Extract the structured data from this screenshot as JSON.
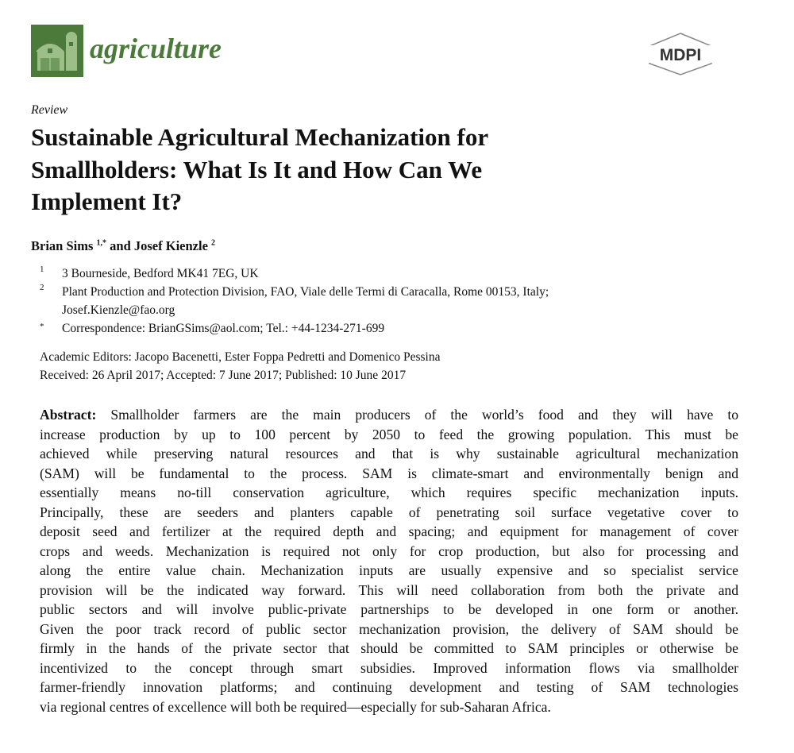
{
  "header": {
    "journal_name": "agriculture",
    "publisher_logo": "MDPI",
    "brand_color": "#4b7a3a"
  },
  "article": {
    "type": "Review",
    "title_lines": [
      "Sustainable Agricultural Mechanization for",
      "Smallholders: What Is It and How Can We",
      "Implement It?"
    ],
    "authors": {
      "author1": "Brian Sims",
      "author1_sup": "1,*",
      "joiner": "and",
      "author2": "Josef Kienzle",
      "author2_sup": "2"
    },
    "affiliations": [
      {
        "mark": "1",
        "text": "3 Bourneside, Bedford MK41 7EG, UK"
      },
      {
        "mark": "2",
        "text": "Plant Production and Protection Division, FAO, Viale delle Termi di Caracalla, Rome 00153, Italy;"
      },
      {
        "mark": "",
        "text": "Josef.Kienzle@fao.org"
      },
      {
        "mark": "*",
        "text": "Correspondence: BrianGSims@aol.com; Tel.: +44-1234-271-699"
      }
    ],
    "editors": "Academic Editors: Jacopo Bacenetti, Ester Foppa Pedretti and Domenico Pessina",
    "dates": "Received: 26 April 2017; Accepted: 7 June 2017; Published: 10 June 2017",
    "abstract_label": "Abstract:",
    "abstract_lines": [
      "Smallholder farmers are the main producers of the world’s food and they will have to",
      "increase production by up to 100 percent by 2050 to feed the growing population. This must be",
      "achieved while preserving natural resources and that is why sustainable agricultural mechanization",
      "(SAM) will be fundamental to the process. SAM is climate-smart and environmentally benign and",
      "essentially means no-till conservation agriculture, which requires specific mechanization inputs.",
      "Principally, these are seeders and planters capable of penetrating soil surface vegetative cover to",
      "deposit seed and fertilizer at the required depth and spacing; and equipment for management of cover",
      "crops and weeds. Mechanization is required not only for crop production, but also for processing and",
      "along the entire value chain. Mechanization inputs are usually expensive and so specialist service",
      "provision will be the indicated way forward. This will need collaboration from both the private and",
      "public sectors and will involve public-private partnerships to be developed in one form or another.",
      "Given the poor track record of public sector mechanization provision, the delivery of SAM should be",
      "firmly in the hands of the private sector that should be committed to SAM principles or otherwise be",
      "incentivized to the concept through smart subsidies. Improved information flows via smallholder",
      "farmer-friendly innovation platforms; and continuing development and testing of SAM technologies",
      "via regional centres of excellence will both be required—especially for sub-Saharan Africa."
    ]
  }
}
